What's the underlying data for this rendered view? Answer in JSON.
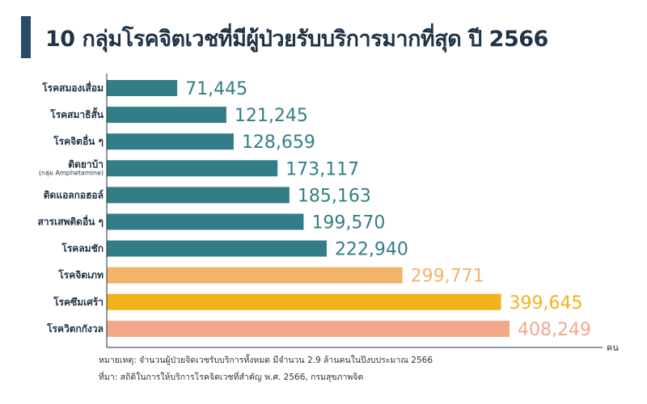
{
  "title": "10 กลุ่มโรคจิตเวชที่มีผู้ป่วยรับบริการมากที่สุด ปี 2566",
  "footnote": {
    "note": "หมายเหตุ: จำนวนผู้ป่วยจิตเวชรับบริการทั้งหมด มีจำนวน 2.9 ล้านคนในปีงบประมาณ 2566",
    "source": "ที่มา: สถิติในการให้บริการโรคจิตเวชที่สำคัญ พ.ศ. 2566, กรมสุขภาพจิต"
  },
  "colors": {
    "teal": "#337e86",
    "light_orange": "#f3b46a",
    "gold": "#f2b21b",
    "salmon": "#f1a98a",
    "axis": "#1f3346"
  },
  "chart_data": {
    "type": "bar",
    "orientation": "horizontal",
    "unit": "คน",
    "categories": [
      "โรคสมองเสื่อม",
      "โรคสมาธิสั้น",
      "โรคจิตอื่น ๆ",
      "ติดยาบ้า",
      "ติดแอลกอฮอล์",
      "สารเสพติดอื่น ๆ",
      "โรคลมชัก",
      "โรคจิตเภท",
      "โรคซึมเศร้า",
      "โรควิตกกังวล"
    ],
    "category_sublabels": [
      "",
      "",
      "",
      "(กลุ่ม Amphetamine)",
      "",
      "",
      "",
      "",
      "",
      ""
    ],
    "values": [
      71445,
      121245,
      128659,
      173117,
      185163,
      199570,
      222940,
      299771,
      399645,
      408249
    ],
    "value_labels": [
      "71,445",
      "121,245",
      "128,659",
      "173,117",
      "185,163",
      "199,570",
      "222,940",
      "299,771",
      "399,645",
      "408,249"
    ],
    "bar_colors": [
      "#337e86",
      "#337e86",
      "#337e86",
      "#337e86",
      "#337e86",
      "#337e86",
      "#337e86",
      "#f3b46a",
      "#f2b21b",
      "#f1a98a"
    ],
    "label_colors": [
      "#337e86",
      "#337e86",
      "#337e86",
      "#337e86",
      "#337e86",
      "#337e86",
      "#337e86",
      "#f3b46a",
      "#f2b21b",
      "#f1a98a"
    ],
    "xlim": [
      0,
      408249
    ],
    "grid": false,
    "legend": "none"
  }
}
